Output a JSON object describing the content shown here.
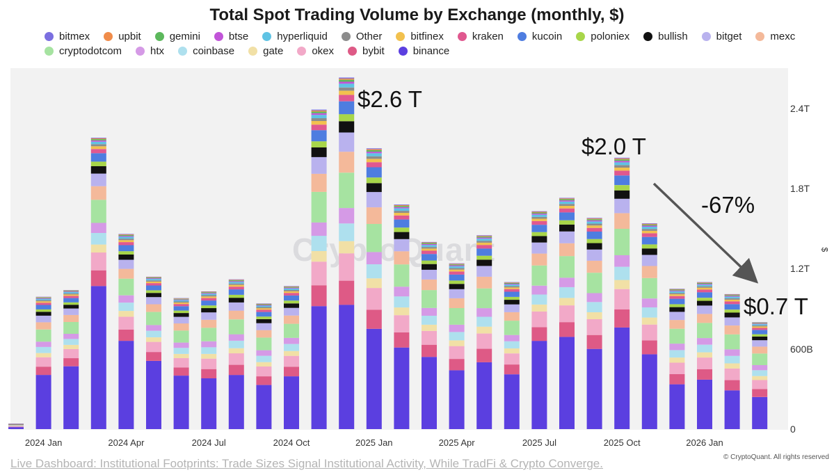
{
  "chart_data": {
    "type": "bar",
    "stacked": true,
    "title": "Total Spot Trading Volume by Exchange (monthly, $)",
    "ylabel": "$",
    "ylim": [
      0,
      2700000000000
    ],
    "y_axis_position": "right",
    "y_ticks": [
      {
        "value": 0,
        "label": "0"
      },
      {
        "value": 600000000000,
        "label": "600B"
      },
      {
        "value": 1200000000000,
        "label": "1.2T"
      },
      {
        "value": 1800000000000,
        "label": "1.8T"
      },
      {
        "value": 2400000000000,
        "label": "2.4T"
      }
    ],
    "x_tick_labels": [
      {
        "index": 0,
        "label": "2024 Jan"
      },
      {
        "index": 3,
        "label": "2024 Apr"
      },
      {
        "index": 6,
        "label": "2024 Jul"
      },
      {
        "index": 9,
        "label": "2024 Oct"
      },
      {
        "index": 12,
        "label": "2025 Jan"
      },
      {
        "index": 15,
        "label": "2025 Apr"
      },
      {
        "index": 18,
        "label": "2025 Jul"
      },
      {
        "index": 21,
        "label": "2025 Oct"
      },
      {
        "index": 24,
        "label": "2026 Jan"
      }
    ],
    "categories": [
      "2023 Dec",
      "2024 Jan",
      "2024 Feb",
      "2024 Mar",
      "2024 Apr",
      "2024 May",
      "2024 Jun",
      "2024 Jul",
      "2024 Aug",
      "2024 Sep",
      "2024 Oct",
      "2024 Nov",
      "2024 Dec",
      "2025 Jan",
      "2025 Feb",
      "2025 Mar",
      "2025 Apr",
      "2025 May",
      "2025 Jun",
      "2025 Jul",
      "2025 Aug",
      "2025 Sep",
      "2025 Oct",
      "2025 Nov",
      "2025 Dec",
      "2026 Jan",
      "2026 Feb",
      "2026 Mar"
    ],
    "totals": [
      40,
      990,
      1040,
      2180,
      1460,
      1140,
      980,
      1030,
      1120,
      940,
      1070,
      2390,
      2630,
      2100,
      1680,
      1400,
      1240,
      1450,
      1100,
      1630,
      1730,
      1580,
      2030,
      1540,
      1050,
      1100,
      1010,
      800
    ],
    "series_order": [
      "binance",
      "bybit",
      "okex",
      "gate",
      "coinbase",
      "htx",
      "cryptodotcom",
      "mexc",
      "bitget",
      "bullish",
      "poloniex",
      "kucoin",
      "kraken",
      "bitfinex",
      "Other",
      "hyperliquid",
      "btse",
      "gemini",
      "upbit",
      "bitmex"
    ],
    "legend": [
      "bitmex",
      "upbit",
      "gemini",
      "btse",
      "hyperliquid",
      "Other",
      "bitfinex",
      "kraken",
      "kucoin",
      "poloniex",
      "bullish",
      "bitget",
      "mexc",
      "cryptodotcom",
      "htx",
      "coinbase",
      "gate",
      "okex",
      "bybit",
      "binance"
    ],
    "colors": {
      "bitmex": "#7b6fe0",
      "upbit": "#f08c4a",
      "gemini": "#5cb85c",
      "btse": "#c154d8",
      "hyperliquid": "#5fc3e4",
      "Other": "#8c8c8c",
      "bitfinex": "#f2c14e",
      "kraken": "#e0588f",
      "kucoin": "#4e7de0",
      "poloniex": "#a8d64a",
      "bullish": "#111111",
      "bitget": "#b9b2ee",
      "mexc": "#f4b99a",
      "cryptodotcom": "#a6e3a1",
      "htx": "#d59ae6",
      "coinbase": "#aee0ee",
      "gate": "#f1e0a6",
      "okex": "#f2a9c8",
      "bybit": "#de5a86",
      "binance": "#5b3fe0"
    },
    "binance": [
      15,
      405,
      470,
      1070,
      660,
      510,
      400,
      380,
      405,
      330,
      395,
      920,
      930,
      750,
      610,
      540,
      440,
      500,
      410,
      660,
      690,
      600,
      760,
      560,
      335,
      370,
      290,
      240
    ],
    "series_shares": {
      "bybit": 0.075,
      "okex": 0.085,
      "gate": 0.038,
      "coinbase": 0.055,
      "htx": 0.048,
      "cryptodotcom": 0.11,
      "mexc": 0.065,
      "bitget": 0.06,
      "bullish": 0.035,
      "poloniex": 0.022,
      "kucoin": 0.04,
      "kraken": 0.02,
      "bitfinex": 0.013,
      "Other": 0.01,
      "hyperliquid": 0.012,
      "btse": 0.006,
      "gemini": 0.006,
      "upbit": 0.004,
      "bitmex": 0.003
    },
    "annotations": [
      {
        "text": "$2.6 T"
      },
      {
        "text": "$2.0 T"
      },
      {
        "text": "-67%"
      },
      {
        "text": "$0.7 T"
      }
    ]
  },
  "watermark": "CryptoQuant",
  "footer_link": "Live Dashboard: Institutional Footprints: Trade Sizes Signal Institutional Activity, While TradFi & Crypto Converge.",
  "credit": "© CryptoQuant. All rights reserved"
}
